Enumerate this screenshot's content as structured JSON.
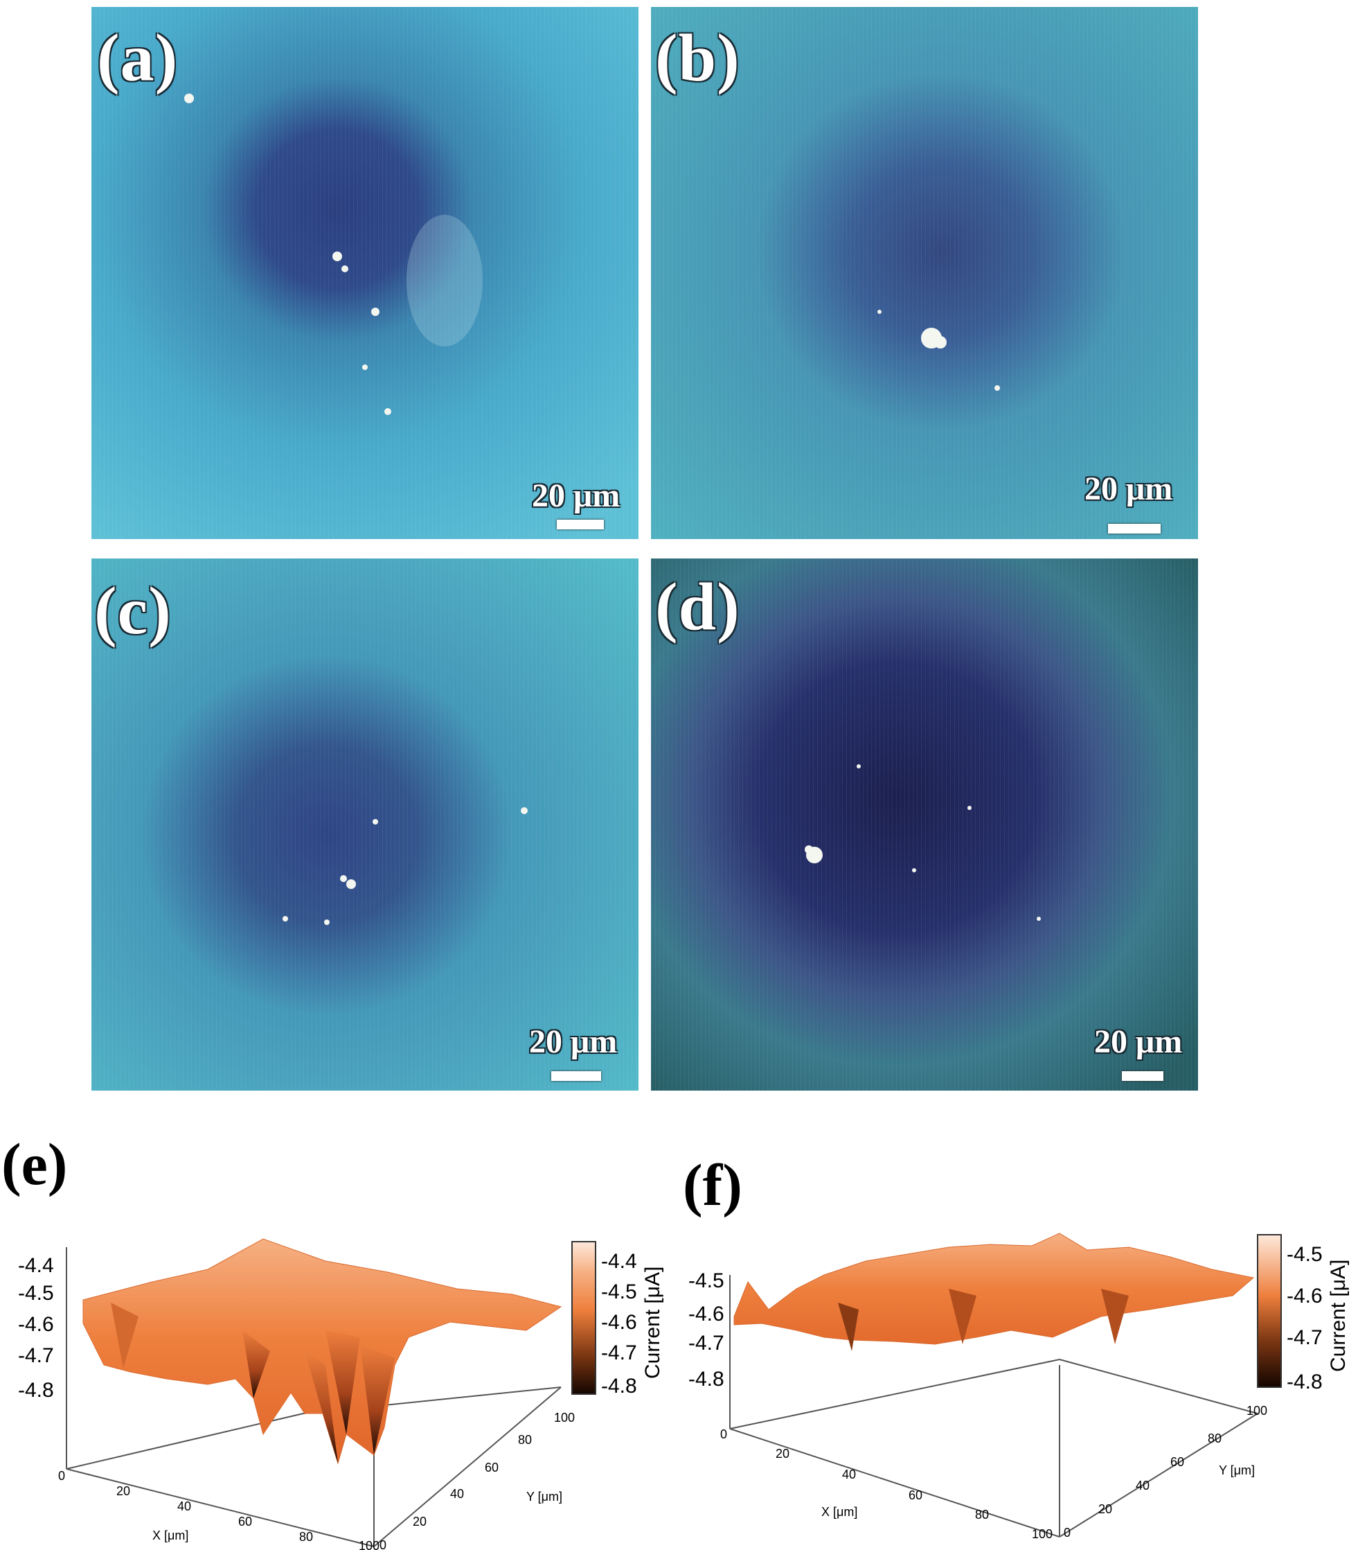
{
  "panels": [
    {
      "label": "(a)",
      "scale": "20 μm"
    },
    {
      "label": "(b)",
      "scale": "20 μm"
    },
    {
      "label": "(c)",
      "scale": "20 μm"
    },
    {
      "label": "(d)",
      "scale": "20 μm"
    }
  ],
  "plots": [
    {
      "label": "(e)",
      "zticks": [
        "-4.4",
        "-4.5",
        "-4.6",
        "-4.7",
        "-4.8"
      ],
      "cbticks": [
        "-4.4",
        "-4.5",
        "-4.6",
        "-4.7",
        "-4.8"
      ],
      "cblabel": "Current [μA]",
      "xlabel": "X [μm]",
      "ylabel": "Y [μm]",
      "xticks": [
        "0",
        "20",
        "40",
        "60",
        "80",
        "100"
      ],
      "yticks": [
        "0",
        "20",
        "40",
        "60",
        "80",
        "100"
      ]
    },
    {
      "label": "(f)",
      "zticks": [
        "-4.5",
        "-4.6",
        "-4.7",
        "-4.8"
      ],
      "cbticks": [
        "-4.5",
        "-4.6",
        "-4.7",
        "-4.8"
      ],
      "cblabel": "Current [μA]",
      "xlabel": "X [μm]",
      "ylabel": "Y [μm]",
      "xticks": [
        "0",
        "20",
        "40",
        "60",
        "80",
        "100"
      ],
      "yticks": [
        "0",
        "20",
        "40",
        "60",
        "80",
        "100"
      ]
    }
  ],
  "chart_data": [
    {
      "type": "heatmap",
      "title": "(e)",
      "xlabel": "X [μm]",
      "ylabel": "Y [μm]",
      "zlabel": "Current [μA]",
      "xlim": [
        0,
        100
      ],
      "ylim": [
        0,
        100
      ],
      "zlim": [
        -4.8,
        -4.4
      ],
      "colorbar_range": [
        -4.8,
        -4.35
      ],
      "note_values": {
        "baseline": -4.45,
        "min_pit": -4.8
      }
    },
    {
      "type": "heatmap",
      "title": "(f)",
      "xlabel": "X [μm]",
      "ylabel": "Y [μm]",
      "zlabel": "Current [μA]",
      "xlim": [
        0,
        100
      ],
      "ylim": [
        0,
        100
      ],
      "zlim": [
        -4.8,
        -4.5
      ],
      "colorbar_range": [
        -4.8,
        -4.48
      ],
      "note_values": {
        "baseline": -4.55,
        "min_pit": -4.72
      }
    }
  ],
  "colors": {
    "micro_bg": "#3fb0c8",
    "micro_dark": "#2a3d7a",
    "surface": "#f08a45",
    "surface_dark": "#1a0a04"
  }
}
